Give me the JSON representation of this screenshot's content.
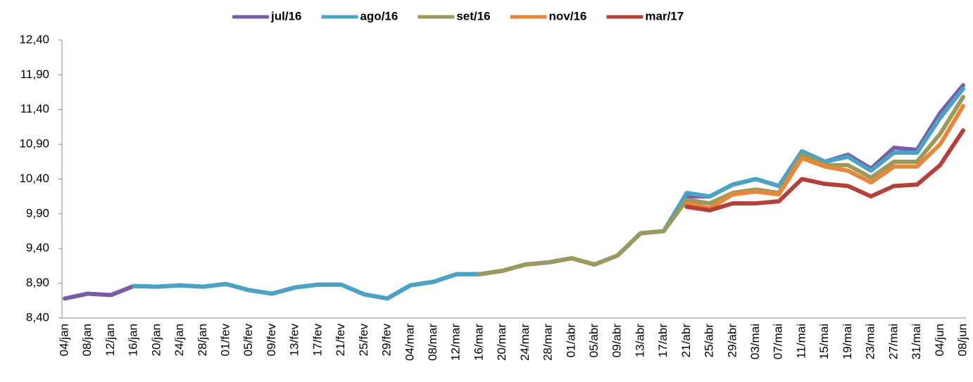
{
  "chart_data": {
    "type": "line",
    "categories": [
      "04/jan",
      "08/jan",
      "12/jan",
      "16/jan",
      "20/jan",
      "24/jan",
      "28/jan",
      "01/fev",
      "05/fev",
      "09/fev",
      "13/fev",
      "17/fev",
      "21/fev",
      "25/fev",
      "29/fev",
      "04/mar",
      "08/mar",
      "12/mar",
      "16/mar",
      "20/mar",
      "24/mar",
      "28/mar",
      "01/abr",
      "05/abr",
      "09/abr",
      "13/abr",
      "17/abr",
      "21/abr",
      "25/abr",
      "29/abr",
      "03/mai",
      "07/mai",
      "11/mai",
      "15/mai",
      "19/mai",
      "23/mai",
      "27/mai",
      "31/mai",
      "04/jun",
      "08/jun"
    ],
    "series": [
      {
        "name": "jul/16",
        "color": "#7a5ca6",
        "values": [
          8.68,
          8.75,
          8.73,
          8.86,
          8.85,
          8.87,
          8.85,
          8.89,
          8.8,
          8.75,
          8.84,
          8.88,
          8.88,
          8.74,
          8.68,
          8.87,
          8.92,
          9.03,
          9.03,
          9.08,
          9.17,
          9.2,
          9.26,
          9.17,
          9.3,
          9.62,
          9.65,
          10.15,
          10.15,
          10.32,
          10.4,
          10.3,
          10.8,
          10.65,
          10.75,
          10.55,
          10.85,
          10.82,
          11.35,
          11.75
        ]
      },
      {
        "name": "ago/16",
        "color": "#4aa3c4",
        "values": [
          null,
          null,
          null,
          8.86,
          8.85,
          8.87,
          8.85,
          8.89,
          8.8,
          8.75,
          8.84,
          8.88,
          8.88,
          8.74,
          8.68,
          8.87,
          8.92,
          9.03,
          9.03,
          9.08,
          9.17,
          9.2,
          9.26,
          9.17,
          9.3,
          9.62,
          9.65,
          10.2,
          10.15,
          10.32,
          10.4,
          10.3,
          10.8,
          10.65,
          10.72,
          10.52,
          10.78,
          10.78,
          11.28,
          11.7
        ]
      },
      {
        "name": "set/16",
        "color": "#9b9a5c",
        "values": [
          null,
          null,
          null,
          null,
          null,
          null,
          null,
          null,
          null,
          null,
          null,
          null,
          null,
          null,
          null,
          null,
          null,
          null,
          9.03,
          9.08,
          9.17,
          9.2,
          9.26,
          9.17,
          9.3,
          9.62,
          9.65,
          10.1,
          10.05,
          10.2,
          10.25,
          10.2,
          10.75,
          10.6,
          10.6,
          10.42,
          10.65,
          10.65,
          11.05,
          11.58
        ]
      },
      {
        "name": "nov/16",
        "color": "#e8873a",
        "values": [
          null,
          null,
          null,
          null,
          null,
          null,
          null,
          null,
          null,
          null,
          null,
          null,
          null,
          null,
          null,
          null,
          null,
          null,
          null,
          null,
          null,
          null,
          null,
          null,
          null,
          null,
          null,
          10.05,
          9.98,
          10.18,
          10.22,
          10.18,
          10.7,
          10.58,
          10.52,
          10.35,
          10.58,
          10.58,
          10.9,
          11.45
        ]
      },
      {
        "name": "mar/17",
        "color": "#b4403a",
        "values": [
          null,
          null,
          null,
          null,
          null,
          null,
          null,
          null,
          null,
          null,
          null,
          null,
          null,
          null,
          null,
          null,
          null,
          null,
          null,
          null,
          null,
          null,
          null,
          null,
          null,
          null,
          null,
          10.0,
          9.95,
          10.05,
          10.05,
          10.08,
          10.4,
          10.33,
          10.3,
          10.15,
          10.3,
          10.32,
          10.6,
          11.1
        ]
      }
    ],
    "ylim": [
      8.4,
      12.4
    ],
    "yticks": [
      {
        "value": 8.4,
        "label": "8,40"
      },
      {
        "value": 8.9,
        "label": "8,90"
      },
      {
        "value": 9.4,
        "label": "9,40"
      },
      {
        "value": 9.9,
        "label": "9,90"
      },
      {
        "value": 10.4,
        "label": "10,40"
      },
      {
        "value": 10.9,
        "label": "10,90"
      },
      {
        "value": 11.4,
        "label": "11,40"
      },
      {
        "value": 11.9,
        "label": "11,90"
      },
      {
        "value": 12.4,
        "label": "12,40"
      }
    ],
    "legend": "top"
  }
}
